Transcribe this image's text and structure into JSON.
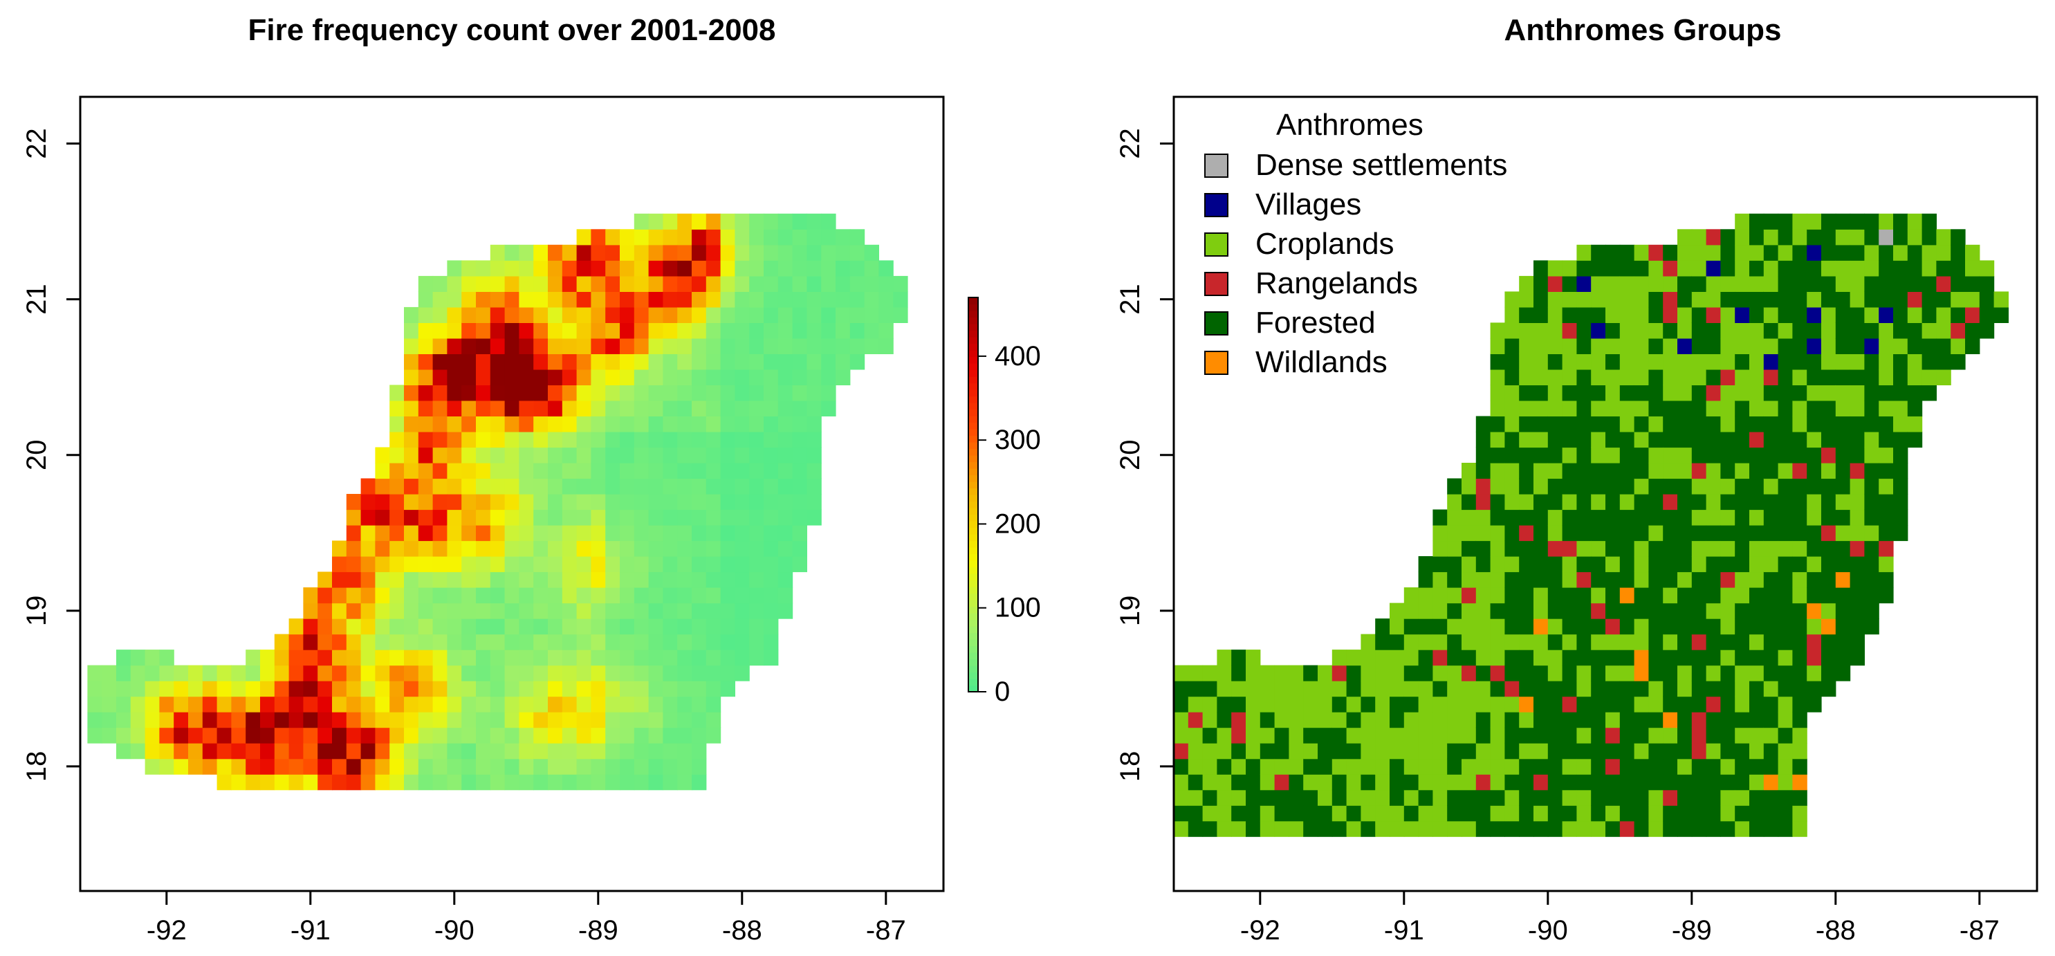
{
  "chart_data": [
    {
      "type": "heatmap",
      "title": "Fire frequency count over 2001-2008",
      "xlabel": "",
      "ylabel": "",
      "xlim": [
        -92.6,
        -86.6
      ],
      "ylim": [
        17.2,
        22.3
      ],
      "x_ticks": [
        "-92",
        "-91",
        "-90",
        "-89",
        "-88",
        "-87"
      ],
      "x_tick_values": [
        -92,
        -91,
        -90,
        -89,
        -88,
        -87
      ],
      "y_ticks": [
        "18",
        "19",
        "20",
        "21",
        "22"
      ],
      "y_tick_values": [
        18,
        19,
        20,
        21,
        22
      ],
      "colorbar": {
        "min": 0,
        "max": 470,
        "ticks": [
          "0",
          "100",
          "200",
          "300",
          "400"
        ],
        "tick_values": [
          0,
          100,
          200,
          300,
          400
        ],
        "colors": [
          "#4fea8c",
          "#a7f165",
          "#f6f600",
          "#f6b800",
          "#ff4a00",
          "#e60000",
          "#8b0000"
        ]
      },
      "grid": false,
      "cell_size_deg": 0.1,
      "hotspots": [
        {
          "lon": -89.6,
          "lat": 20.5,
          "value": 420
        },
        {
          "lon": -90.05,
          "lat": 20.5,
          "value": 430
        },
        {
          "lon": -89.4,
          "lat": 20.45,
          "value": 380
        },
        {
          "lon": -88.9,
          "lat": 20.8,
          "value": 340
        },
        {
          "lon": -89.1,
          "lat": 21.25,
          "value": 360
        },
        {
          "lon": -88.25,
          "lat": 21.3,
          "value": 320
        },
        {
          "lon": -88.5,
          "lat": 21.1,
          "value": 300
        },
        {
          "lon": -90.7,
          "lat": 18.05,
          "value": 460
        },
        {
          "lon": -91.05,
          "lat": 18.3,
          "value": 400
        },
        {
          "lon": -91.4,
          "lat": 18.15,
          "value": 360
        },
        {
          "lon": -91.85,
          "lat": 18.25,
          "value": 350
        },
        {
          "lon": -90.95,
          "lat": 18.75,
          "value": 330
        },
        {
          "lon": -90.75,
          "lat": 19.2,
          "value": 290
        },
        {
          "lon": -90.6,
          "lat": 19.7,
          "value": 300
        },
        {
          "lon": -90.2,
          "lat": 19.55,
          "value": 260
        },
        {
          "lon": -89.8,
          "lat": 19.6,
          "value": 220
        },
        {
          "lon": -90.15,
          "lat": 20.05,
          "value": 280
        },
        {
          "lon": -89.7,
          "lat": 20.9,
          "value": 250
        },
        {
          "lon": -90.3,
          "lat": 18.5,
          "value": 240
        },
        {
          "lon": -89.3,
          "lat": 18.35,
          "value": 170
        },
        {
          "lon": -88.85,
          "lat": 18.4,
          "value": 160
        },
        {
          "lon": -89.0,
          "lat": 19.3,
          "value": 150
        }
      ]
    },
    {
      "type": "heatmap",
      "title": "Anthromes Groups",
      "xlabel": "",
      "ylabel": "",
      "xlim": [
        -92.6,
        -86.6
      ],
      "ylim": [
        17.2,
        22.3
      ],
      "x_ticks": [
        "-92",
        "-91",
        "-90",
        "-89",
        "-88",
        "-87"
      ],
      "x_tick_values": [
        -92,
        -91,
        -90,
        -89,
        -88,
        -87
      ],
      "y_ticks": [
        "18",
        "19",
        "20",
        "21",
        "22"
      ],
      "y_tick_values": [
        18,
        19,
        20,
        21,
        22
      ],
      "legend_title": "Anthromes",
      "legend_position": "top-left",
      "categories": [
        {
          "name": "Dense settlements",
          "color": "#aeaeae"
        },
        {
          "name": "Villages",
          "color": "#00008b"
        },
        {
          "name": "Croplands",
          "color": "#7fcd0f"
        },
        {
          "name": "Rangelands",
          "color": "#c8262b"
        },
        {
          "name": "Forested",
          "color": "#006400"
        },
        {
          "name": "Wildlands",
          "color": "#ff8c00"
        }
      ],
      "grid": false,
      "cell_size_deg": 0.1
    }
  ]
}
